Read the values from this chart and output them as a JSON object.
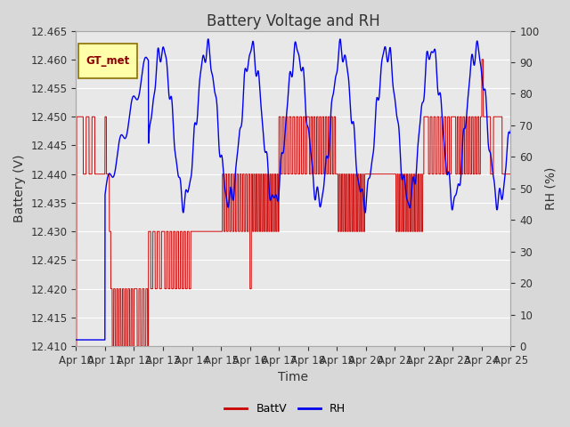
{
  "title": "Battery Voltage and RH",
  "xlabel": "Time",
  "ylabel_left": "Battery (V)",
  "ylabel_right": "RH (%)",
  "legend_label": "GT_met",
  "ylim_left": [
    12.41,
    12.465
  ],
  "ylim_right": [
    0,
    100
  ],
  "yticks_left": [
    12.41,
    12.415,
    12.42,
    12.425,
    12.43,
    12.435,
    12.44,
    12.445,
    12.45,
    12.455,
    12.46,
    12.465
  ],
  "yticks_right": [
    0,
    10,
    20,
    30,
    40,
    50,
    60,
    70,
    80,
    90,
    100
  ],
  "xtick_labels": [
    "Apr 10",
    "Apr 11",
    "Apr 12",
    "Apr 13",
    "Apr 14",
    "Apr 15",
    "Apr 16",
    "Apr 17",
    "Apr 18",
    "Apr 19",
    "Apr 20",
    "Apr 21",
    "Apr 22",
    "Apr 23",
    "Apr 24",
    "Apr 25"
  ],
  "plot_bg_color": "#e8e8e8",
  "fig_bg_color": "#d8d8d8",
  "grid_color": "#ffffff",
  "batt_color": "#cc0000",
  "rh_color": "#0000ee",
  "title_fontsize": 12,
  "axis_label_fontsize": 10,
  "tick_fontsize": 8.5
}
